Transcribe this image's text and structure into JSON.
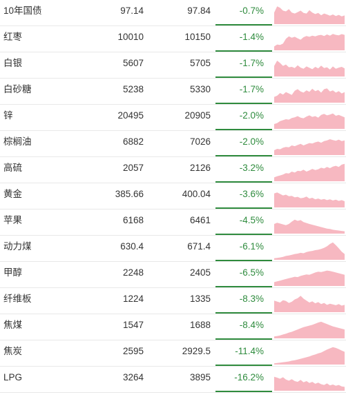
{
  "colors": {
    "decline": "#2e8b3d",
    "sparkline_fill": "#f7b8c1",
    "text": "#333333"
  },
  "rows": [
    {
      "name": "10年国债",
      "price": "97.14",
      "prev": "97.84",
      "change": "-0.7%",
      "trend": [
        0.6,
        0.92,
        0.85,
        0.7,
        0.66,
        0.78,
        0.6,
        0.55,
        0.62,
        0.7,
        0.58,
        0.55,
        0.72,
        0.6,
        0.52,
        0.58,
        0.46,
        0.55,
        0.5,
        0.44,
        0.5,
        0.42,
        0.48,
        0.4,
        0.45
      ]
    },
    {
      "name": "红枣",
      "price": "10010",
      "prev": "10150",
      "change": "-1.4%",
      "trend": [
        0.2,
        0.3,
        0.28,
        0.35,
        0.6,
        0.72,
        0.65,
        0.7,
        0.62,
        0.55,
        0.68,
        0.74,
        0.7,
        0.76,
        0.72,
        0.78,
        0.8,
        0.74,
        0.82,
        0.76,
        0.85,
        0.8,
        0.78,
        0.84,
        0.8
      ]
    },
    {
      "name": "白银",
      "price": "5607",
      "prev": "5705",
      "change": "-1.7%",
      "trend": [
        0.55,
        0.82,
        0.7,
        0.55,
        0.62,
        0.48,
        0.5,
        0.44,
        0.58,
        0.46,
        0.4,
        0.52,
        0.45,
        0.38,
        0.5,
        0.42,
        0.56,
        0.44,
        0.48,
        0.36,
        0.52,
        0.4,
        0.46,
        0.5,
        0.42
      ]
    },
    {
      "name": "白砂糖",
      "price": "5238",
      "prev": "5330",
      "change": "-1.7%",
      "trend": [
        0.3,
        0.36,
        0.5,
        0.42,
        0.55,
        0.48,
        0.4,
        0.62,
        0.7,
        0.58,
        0.52,
        0.64,
        0.56,
        0.72,
        0.6,
        0.66,
        0.52,
        0.7,
        0.74,
        0.58,
        0.64,
        0.52,
        0.6,
        0.48,
        0.55
      ]
    },
    {
      "name": "锌",
      "price": "20495",
      "prev": "20905",
      "change": "-2.0%",
      "trend": [
        0.25,
        0.3,
        0.4,
        0.45,
        0.5,
        0.48,
        0.56,
        0.6,
        0.66,
        0.58,
        0.55,
        0.64,
        0.7,
        0.62,
        0.66,
        0.58,
        0.72,
        0.78,
        0.7,
        0.74,
        0.8,
        0.68,
        0.72,
        0.66,
        0.6
      ]
    },
    {
      "name": "棕榈油",
      "price": "6882",
      "prev": "7026",
      "change": "-2.0%",
      "trend": [
        0.25,
        0.32,
        0.3,
        0.38,
        0.42,
        0.4,
        0.5,
        0.46,
        0.52,
        0.58,
        0.5,
        0.56,
        0.62,
        0.6,
        0.66,
        0.7,
        0.64,
        0.72,
        0.76,
        0.82,
        0.78,
        0.74,
        0.8,
        0.72,
        0.76
      ]
    },
    {
      "name": "高硫",
      "price": "2057",
      "prev": "2126",
      "change": "-3.2%",
      "trend": [
        0.2,
        0.26,
        0.3,
        0.35,
        0.42,
        0.4,
        0.5,
        0.45,
        0.54,
        0.52,
        0.6,
        0.5,
        0.56,
        0.64,
        0.58,
        0.62,
        0.7,
        0.66,
        0.74,
        0.68,
        0.76,
        0.8,
        0.74,
        0.86,
        0.9
      ]
    },
    {
      "name": "黄金",
      "price": "385.66",
      "prev": "400.04",
      "change": "-3.6%",
      "trend": [
        0.72,
        0.78,
        0.7,
        0.62,
        0.66,
        0.58,
        0.6,
        0.52,
        0.55,
        0.48,
        0.5,
        0.56,
        0.46,
        0.5,
        0.42,
        0.46,
        0.4,
        0.44,
        0.38,
        0.42,
        0.36,
        0.4,
        0.34,
        0.38,
        0.32
      ]
    },
    {
      "name": "苹果",
      "price": "6168",
      "prev": "6461",
      "change": "-4.5%",
      "trend": [
        0.5,
        0.56,
        0.52,
        0.48,
        0.44,
        0.5,
        0.62,
        0.72,
        0.66,
        0.7,
        0.6,
        0.55,
        0.5,
        0.46,
        0.42,
        0.38,
        0.34,
        0.3,
        0.26,
        0.24,
        0.2,
        0.18,
        0.16,
        0.14,
        0.12
      ]
    },
    {
      "name": "动力煤",
      "price": "630.4",
      "prev": "671.4",
      "change": "-6.1%",
      "trend": [
        0.08,
        0.1,
        0.12,
        0.15,
        0.2,
        0.22,
        0.26,
        0.3,
        0.32,
        0.36,
        0.34,
        0.4,
        0.44,
        0.46,
        0.5,
        0.52,
        0.56,
        0.62,
        0.7,
        0.82,
        0.9,
        0.76,
        0.6,
        0.42,
        0.3
      ]
    },
    {
      "name": "甲醇",
      "price": "2248",
      "prev": "2405",
      "change": "-6.5%",
      "trend": [
        0.2,
        0.24,
        0.28,
        0.32,
        0.36,
        0.4,
        0.44,
        0.48,
        0.46,
        0.52,
        0.56,
        0.6,
        0.58,
        0.64,
        0.7,
        0.74,
        0.72,
        0.76,
        0.8,
        0.78,
        0.74,
        0.7,
        0.66,
        0.62,
        0.58
      ]
    },
    {
      "name": "纤维板",
      "price": "1224",
      "prev": "1335",
      "change": "-8.3%",
      "trend": [
        0.6,
        0.55,
        0.5,
        0.62,
        0.58,
        0.48,
        0.54,
        0.66,
        0.72,
        0.85,
        0.7,
        0.6,
        0.5,
        0.56,
        0.46,
        0.52,
        0.42,
        0.48,
        0.38,
        0.44,
        0.4,
        0.36,
        0.42,
        0.34,
        0.38
      ]
    },
    {
      "name": "焦煤",
      "price": "1547",
      "prev": "1688",
      "change": "-8.4%",
      "trend": [
        0.1,
        0.12,
        0.15,
        0.2,
        0.24,
        0.3,
        0.34,
        0.4,
        0.46,
        0.52,
        0.58,
        0.62,
        0.66,
        0.7,
        0.76,
        0.82,
        0.86,
        0.8,
        0.74,
        0.68,
        0.62,
        0.58,
        0.54,
        0.5,
        0.46
      ]
    },
    {
      "name": "焦炭",
      "price": "2595",
      "prev": "2929.5",
      "change": "-11.4%",
      "trend": [
        0.06,
        0.08,
        0.1,
        0.12,
        0.14,
        0.16,
        0.2,
        0.22,
        0.26,
        0.3,
        0.34,
        0.38,
        0.42,
        0.48,
        0.52,
        0.58,
        0.62,
        0.7,
        0.78,
        0.84,
        0.9,
        0.86,
        0.8,
        0.72,
        0.66
      ]
    },
    {
      "name": "LPG",
      "price": "3264",
      "prev": "3895",
      "change": "-16.2%",
      "trend": [
        0.72,
        0.68,
        0.62,
        0.7,
        0.58,
        0.52,
        0.6,
        0.5,
        0.46,
        0.56,
        0.44,
        0.5,
        0.4,
        0.46,
        0.36,
        0.42,
        0.34,
        0.3,
        0.38,
        0.28,
        0.32,
        0.26,
        0.3,
        0.22,
        0.2
      ]
    }
  ]
}
